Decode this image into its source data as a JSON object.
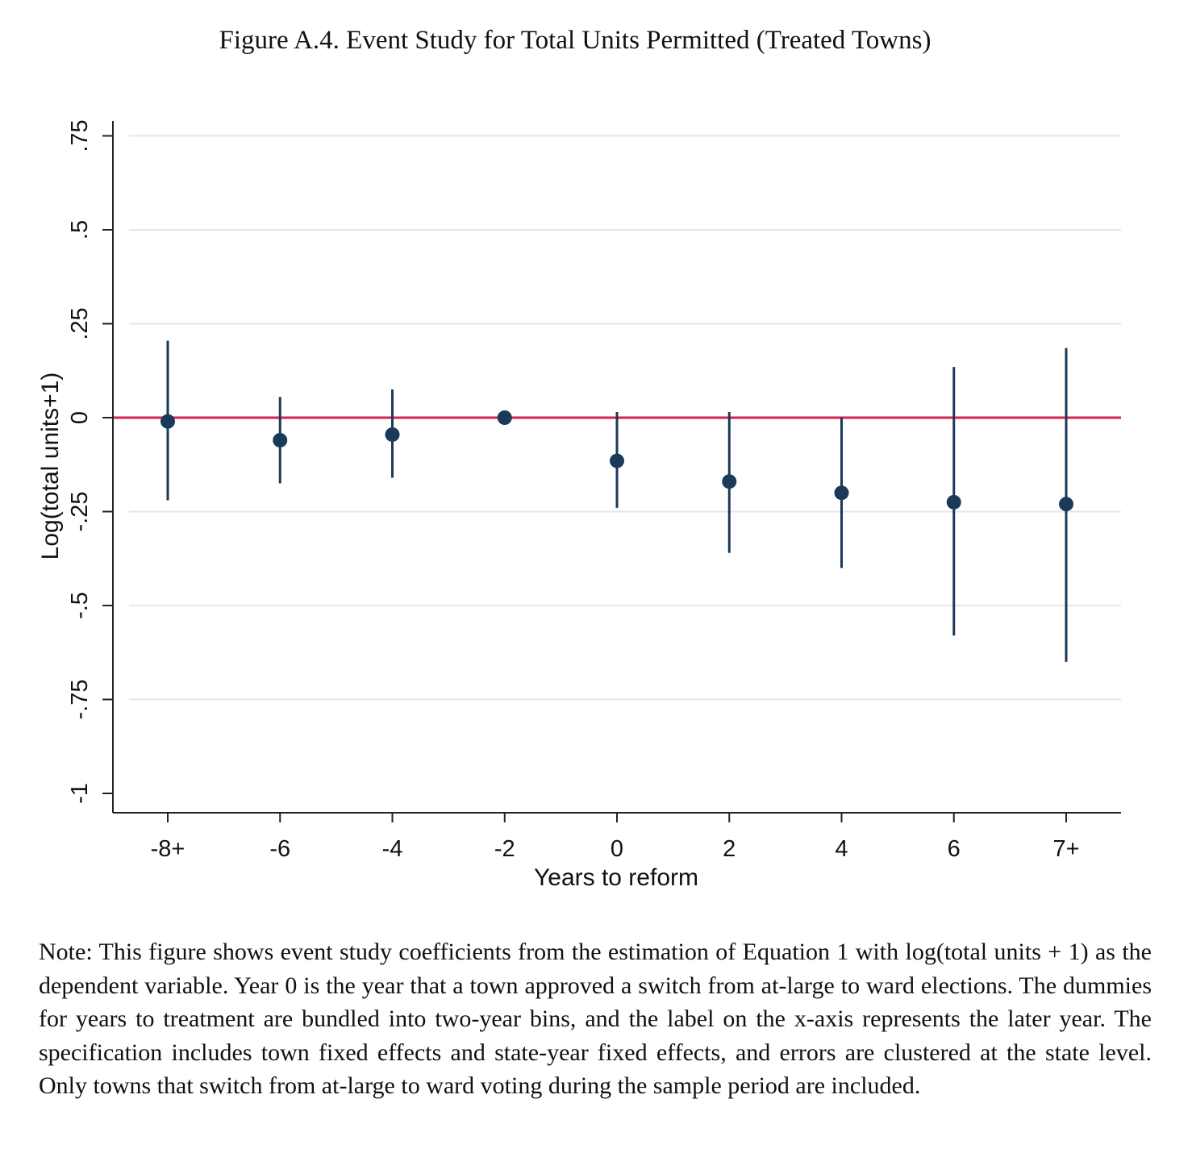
{
  "figure": {
    "title": "Figure A.4. Event Study for Total Units Permitted (Treated Towns)",
    "note": "Note: This figure shows event study coefficients from the estimation of Equation 1 with log(total units + 1) as the dependent variable. Year 0 is the year that a town approved a switch from at-large to ward elections. The dummies for years to treatment are bundled into two-year bins, and the label on the x-axis represents the later year. The specification includes town fixed effects and state-year fixed effects, and errors are clustered at the state level. Only towns that switch from at-large to ward voting during the sample period are included."
  },
  "chart_data": {
    "type": "scatter",
    "categories": [
      "-8+",
      "-6",
      "-4",
      "-2",
      "0",
      "2",
      "4",
      "6",
      "7+"
    ],
    "series": [
      {
        "values": [
          -0.01,
          -0.06,
          -0.045,
          0.0,
          -0.115,
          -0.17,
          -0.2,
          -0.225,
          -0.23
        ],
        "ci_low": [
          -0.22,
          -0.175,
          -0.16,
          0.0,
          -0.24,
          -0.36,
          -0.4,
          -0.58,
          -0.65
        ],
        "ci_high": [
          0.205,
          0.055,
          0.075,
          0.0,
          0.015,
          0.015,
          0.0,
          0.135,
          0.185
        ]
      }
    ],
    "xlabel": "Years to reform",
    "ylabel": "Log(total units+1)",
    "yticks": [
      -1,
      -0.75,
      -0.5,
      -0.25,
      0,
      0.25,
      0.5,
      0.75
    ],
    "ytick_labels": [
      "-1",
      "-.75",
      "-.5",
      "-.25",
      "0",
      ".25",
      ".5",
      ".75"
    ],
    "ylim": [
      -1,
      0.75
    ],
    "reference_line": 0,
    "grid": true,
    "colors": {
      "point": "#1a3a5a",
      "reference_line": "#d6204f",
      "grid": "#e6e6e6"
    }
  }
}
